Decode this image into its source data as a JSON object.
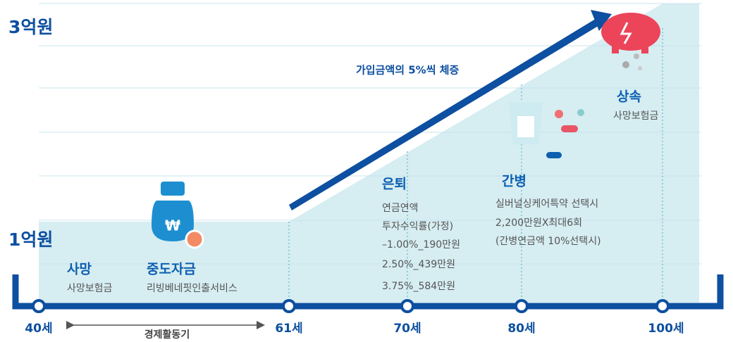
{
  "amounts": {
    "top": "3억원",
    "bottom": "1억원"
  },
  "growth": "가입금액의 5%씩 체증",
  "stages": [
    {
      "title": "사망",
      "lines": [
        "사망보험금"
      ]
    },
    {
      "title": "중도자금",
      "lines": [
        "리빙베네핏인출서비스"
      ]
    },
    {
      "title": "은퇴",
      "lines": [
        "연금연액",
        "투자수익률(가정)",
        "–1.00%_190만원",
        "2.50%_439만원",
        "3.75%_584만원"
      ]
    },
    {
      "title": "간병",
      "lines": [
        "실버널싱케어특약 선택시",
        "2,200만원X최대6회",
        "(간병연금액 10%선택시)"
      ]
    },
    {
      "title": "상속",
      "lines": [
        "사망보험금"
      ]
    }
  ],
  "ages": [
    "40세",
    "61세",
    "70세",
    "80세",
    "100세"
  ],
  "period": "경제활동기"
}
